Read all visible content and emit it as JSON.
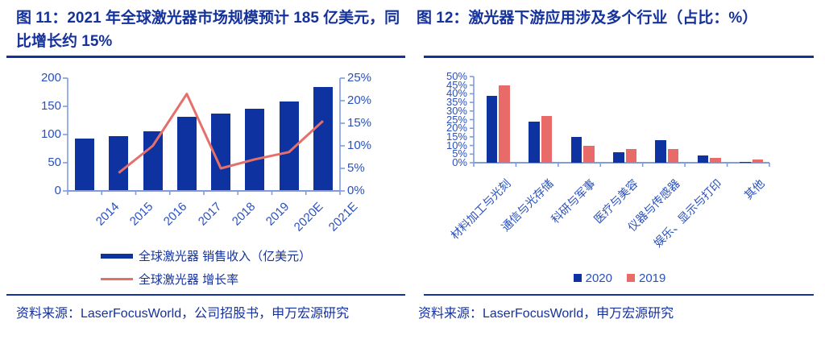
{
  "colors": {
    "navy": "#15329B",
    "bar_blue": "#0E33A0",
    "bar_red": "#E86B69",
    "line_salmon": "#E5706B",
    "axis_label_blue": "#2850BE",
    "axis_line_blue": "#7E9CDE"
  },
  "figures": [
    {
      "title": "图 11：2021 年全球激光器市场规模预计 185 亿美元，同比增长约 15%",
      "legend": [
        "全球激光器 销售收入（亿美元）",
        "全球激光器 增长率"
      ],
      "source": "资料来源：LaserFocusWorld，公司招股书，申万宏源研究"
    },
    {
      "title": "图 12：激光器下游应用涉及多个行业（占比：%）",
      "legend": [
        "2020",
        "2019"
      ],
      "source": "资料来源：LaserFocusWorld，申万宏源研究"
    }
  ],
  "chart_data": [
    {
      "type": "combo_bar_line",
      "title": "图 11：2021 年全球激光器市场规模预计 185 亿美元，同比增长约 15%",
      "categories": [
        "2014",
        "2015",
        "2016",
        "2017",
        "2018",
        "2019",
        "2020E",
        "2021E"
      ],
      "series": [
        {
          "name": "全球激光器 销售收入（亿美元）",
          "type": "bar",
          "axis": "left",
          "color": "#0E33A0",
          "values": [
            93,
            97,
            106,
            131,
            137,
            146,
            159,
            185
          ]
        },
        {
          "name": "全球激光器 增长率",
          "type": "line",
          "axis": "right",
          "color": "#E5706B",
          "values": [
            null,
            4,
            10,
            21.5,
            5,
            7,
            8.6,
            15.5
          ]
        }
      ],
      "left_axis": {
        "min": 0,
        "max": 200,
        "step": 50,
        "ticks": [
          "0",
          "50",
          "100",
          "150",
          "200"
        ]
      },
      "right_axis": {
        "min": 0,
        "max": 25,
        "step": 5,
        "ticks": [
          "0%",
          "5%",
          "10%",
          "15%",
          "20%",
          "25%"
        ]
      },
      "grid": false,
      "legend_position": "bottom"
    },
    {
      "type": "bar",
      "title": "图 12：激光器下游应用涉及多个行业（占比：%）",
      "categories": [
        "材料加工与光刻",
        "通信与光存储",
        "科研与军事",
        "医疗与美容",
        "仪器与传感器",
        "娱乐、显示与打印",
        "其他"
      ],
      "series": [
        {
          "name": "2020",
          "color": "#0E33A0",
          "values": [
            39,
            24,
            15,
            6,
            13,
            4,
            0.5
          ]
        },
        {
          "name": "2019",
          "color": "#E86B69",
          "values": [
            45,
            27,
            10,
            8,
            8,
            3,
            2
          ]
        }
      ],
      "y_axis": {
        "min": 0,
        "max": 50,
        "step": 5,
        "ticks": [
          "0%",
          "5%",
          "10%",
          "15%",
          "20%",
          "25%",
          "30%",
          "35%",
          "40%",
          "45%",
          "50%"
        ]
      },
      "grid": false,
      "legend_position": "bottom"
    }
  ]
}
